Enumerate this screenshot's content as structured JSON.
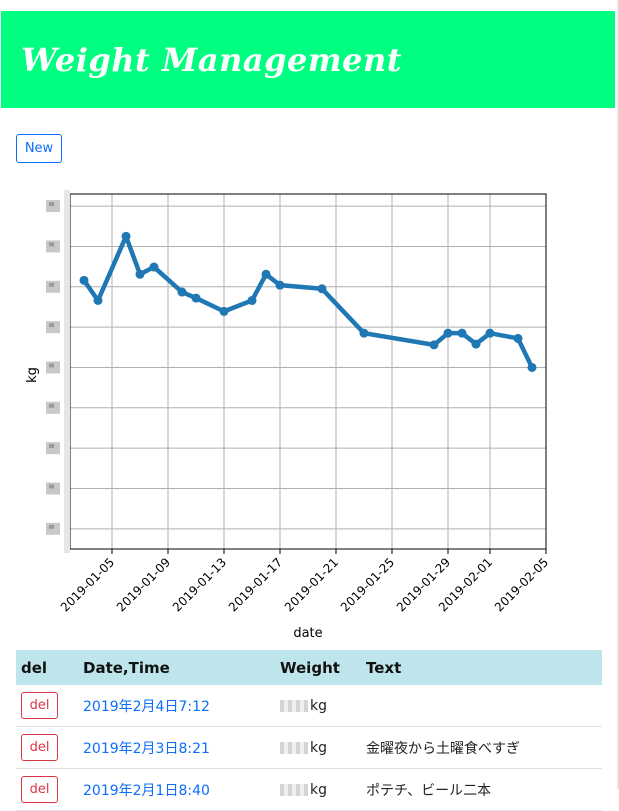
{
  "header": {
    "title": "Weight Management"
  },
  "toolbar": {
    "new_label": "New"
  },
  "chart_data": {
    "type": "line",
    "xlabel": "date",
    "ylabel": "kg",
    "x_ticks": [
      "2019-01-05",
      "2019-01-09",
      "2019-01-13",
      "2019-01-17",
      "2019-01-21",
      "2019-01-25",
      "2019-01-29",
      "2019-02-01",
      "2019-02-05"
    ],
    "x_range": [
      "2019-01-02",
      "2019-02-05"
    ],
    "series": [
      {
        "color": "#1f77b4",
        "x": [
          "2019-01-03",
          "2019-01-04",
          "2019-01-06",
          "2019-01-07",
          "2019-01-08",
          "2019-01-10",
          "2019-01-11",
          "2019-01-13",
          "2019-01-15",
          "2019-01-16",
          "2019-01-17",
          "2019-01-20",
          "2019-01-23",
          "2019-01-28",
          "2019-01-29",
          "2019-01-30",
          "2019-01-31",
          "2019-02-01",
          "2019-02-03",
          "2019-02-04"
        ],
        "values": [
          2.16,
          1.66,
          3.25,
          2.31,
          2.49,
          1.87,
          1.72,
          1.39,
          1.66,
          2.31,
          2.04,
          1.95,
          0.85,
          0.56,
          0.85,
          0.85,
          0.58,
          0.85,
          0.72,
          0.0
        ]
      }
    ],
    "y_range": [
      -4.5,
      4.3
    ],
    "y_tick_values": [
      -4,
      -3,
      -2,
      -1,
      0,
      1,
      2,
      3,
      4
    ],
    "grid": true
  },
  "table": {
    "headers": {
      "del": "del",
      "datetime": "Date,Time",
      "weight": "Weight",
      "text": "Text"
    },
    "rows": [
      {
        "del_label": "del",
        "datetime": "2019年2月4日7:12",
        "unit": "kg",
        "text": ""
      },
      {
        "del_label": "del",
        "datetime": "2019年2月3日8:21",
        "unit": "kg",
        "text": "金曜夜から土曜食べすぎ"
      },
      {
        "del_label": "del",
        "datetime": "2019年2月1日8:40",
        "unit": "kg",
        "text": "ポテチ、ビール二本"
      }
    ]
  }
}
